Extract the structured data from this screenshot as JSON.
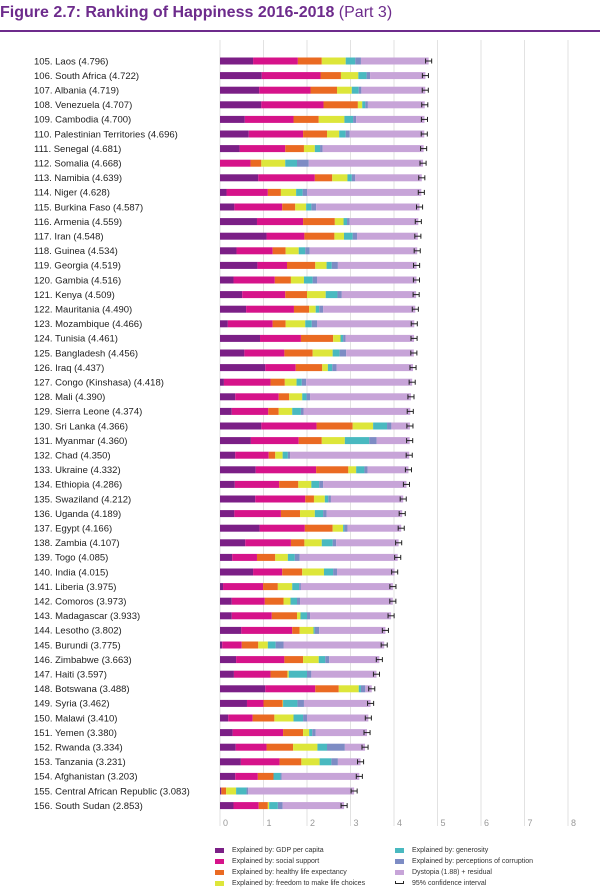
{
  "figure": {
    "title_bold": "Figure 2.7: Ranking of Happiness 2016-2018",
    "title_suffix": "(Part 3)"
  },
  "chart_data": {
    "type": "bar",
    "orientation": "horizontal",
    "stacked": true,
    "xlim": [
      0,
      8
    ],
    "xticks": [
      "0",
      "1",
      "2",
      "3",
      "4",
      "5",
      "6",
      "7",
      "8"
    ],
    "grid": true,
    "legend_position": "bottom",
    "colors": {
      "gdp": "#7b1f86",
      "social": "#d6138a",
      "health": "#ea6a22",
      "freedom": "#dde63a",
      "generosity": "#49b9c0",
      "corruption": "#7d8cc4",
      "dystopia": "#c7a4d8",
      "ci": "#222222"
    },
    "legend": [
      {
        "key": "gdp",
        "label": "Explained by: GDP per capita"
      },
      {
        "key": "social",
        "label": "Explained by: social support"
      },
      {
        "key": "health",
        "label": "Explained by: healthy life expectancy"
      },
      {
        "key": "freedom",
        "label": "Explained by: freedom to make life choices"
      },
      {
        "key": "generosity",
        "label": "Explained by: generosity"
      },
      {
        "key": "corruption",
        "label": "Explained by: perceptions of corruption"
      },
      {
        "key": "dystopia",
        "label": "Dystopia (1.88) + residual"
      },
      {
        "key": "ci",
        "label": "95% confidence interval"
      }
    ],
    "rows": [
      {
        "label": "105.  Laos (4.796)",
        "score": 4.796,
        "parts": [
          0.76,
          1.03,
          0.55,
          0.55,
          0.22,
          0.13
        ]
      },
      {
        "label": "106.  South Africa (4.722)",
        "score": 4.722,
        "parts": [
          0.96,
          1.35,
          0.47,
          0.4,
          0.19,
          0.08
        ]
      },
      {
        "label": "107.  Albania (4.719)",
        "score": 4.719,
        "parts": [
          0.9,
          1.18,
          0.61,
          0.34,
          0.16,
          0.06
        ]
      },
      {
        "label": "108.  Venezuela (4.707)",
        "score": 4.707,
        "parts": [
          0.95,
          1.43,
          0.79,
          0.1,
          0.07,
          0.06
        ]
      },
      {
        "label": "109.  Cambodia (4.700)",
        "score": 4.7,
        "parts": [
          0.57,
          1.12,
          0.58,
          0.59,
          0.2,
          0.07
        ]
      },
      {
        "label": "110.  Palestinian Territories (4.696)",
        "score": 4.696,
        "parts": [
          0.66,
          1.25,
          0.55,
          0.28,
          0.15,
          0.09
        ]
      },
      {
        "label": "111.  Senegal (4.681)",
        "score": 4.681,
        "parts": [
          0.45,
          1.05,
          0.43,
          0.25,
          0.12,
          0.06
        ]
      },
      {
        "label": "112.  Somalia (4.668)",
        "score": 4.668,
        "parts": [
          0.0,
          0.7,
          0.25,
          0.55,
          0.27,
          0.27
        ]
      },
      {
        "label": "113.  Namibia (4.639)",
        "score": 4.639,
        "parts": [
          0.88,
          1.3,
          0.4,
          0.35,
          0.1,
          0.08
        ]
      },
      {
        "label": "114.  Niger (4.628)",
        "score": 4.628,
        "parts": [
          0.15,
          0.95,
          0.3,
          0.35,
          0.15,
          0.1
        ]
      },
      {
        "label": "115.  Burkina Faso (4.587)",
        "score": 4.587,
        "parts": [
          0.33,
          1.1,
          0.3,
          0.25,
          0.12,
          0.11
        ]
      },
      {
        "label": "116.  Armenia (4.559)",
        "score": 4.559,
        "parts": [
          0.85,
          1.06,
          0.73,
          0.2,
          0.08,
          0.06
        ]
      },
      {
        "label": "117.  Iran (4.548)",
        "score": 4.548,
        "parts": [
          1.07,
          0.87,
          0.69,
          0.22,
          0.2,
          0.1
        ]
      },
      {
        "label": "118.  Guinea (4.534)",
        "score": 4.534,
        "parts": [
          0.38,
          0.83,
          0.3,
          0.3,
          0.15,
          0.1
        ]
      },
      {
        "label": "119.  Georgia (4.519)",
        "score": 4.519,
        "parts": [
          0.86,
          0.68,
          0.65,
          0.26,
          0.12,
          0.14
        ]
      },
      {
        "label": "120.  Gambia (4.516)",
        "score": 4.516,
        "parts": [
          0.31,
          0.95,
          0.37,
          0.3,
          0.2,
          0.1
        ]
      },
      {
        "label": "121.  Kenya (4.509)",
        "score": 4.509,
        "parts": [
          0.51,
          0.99,
          0.5,
          0.43,
          0.27,
          0.1
        ]
      },
      {
        "label": "122.  Mauritania (4.490)",
        "score": 4.49,
        "parts": [
          0.6,
          1.1,
          0.35,
          0.15,
          0.08,
          0.09
        ]
      },
      {
        "label": "123.  Mozambique (4.466)",
        "score": 4.466,
        "parts": [
          0.18,
          1.03,
          0.3,
          0.45,
          0.15,
          0.12
        ]
      },
      {
        "label": "124.  Tunisia (4.461)",
        "score": 4.461,
        "parts": [
          0.92,
          0.94,
          0.74,
          0.17,
          0.06,
          0.06
        ]
      },
      {
        "label": "125.  Bangladesh (4.456)",
        "score": 4.456,
        "parts": [
          0.56,
          0.92,
          0.65,
          0.46,
          0.16,
          0.15
        ]
      },
      {
        "label": "126.  Iraq (4.437)",
        "score": 4.437,
        "parts": [
          1.04,
          0.7,
          0.61,
          0.13,
          0.1,
          0.1
        ]
      },
      {
        "label": "127.  Congo (Kinshasa) (4.418)",
        "score": 4.418,
        "parts": [
          0.09,
          1.07,
          0.33,
          0.27,
          0.12,
          0.1
        ]
      },
      {
        "label": "128.  Mali (4.390)",
        "score": 4.39,
        "parts": [
          0.35,
          1.0,
          0.24,
          0.3,
          0.1,
          0.08
        ]
      },
      {
        "label": "129.  Sierra Leone (4.374)",
        "score": 4.374,
        "parts": [
          0.27,
          0.84,
          0.24,
          0.31,
          0.2,
          0.06
        ]
      },
      {
        "label": "130.  Sri Lanka (4.366)",
        "score": 4.366,
        "parts": [
          0.95,
          1.27,
          0.83,
          0.47,
          0.32,
          0.1
        ]
      },
      {
        "label": "131.  Myanmar (4.360)",
        "score": 4.36,
        "parts": [
          0.71,
          1.1,
          0.53,
          0.53,
          0.56,
          0.17
        ]
      },
      {
        "label": "132.  Chad (4.350)",
        "score": 4.35,
        "parts": [
          0.35,
          0.77,
          0.15,
          0.17,
          0.12,
          0.05
        ]
      },
      {
        "label": "133.  Ukraine (4.332)",
        "score": 4.332,
        "parts": [
          0.82,
          1.39,
          0.74,
          0.18,
          0.19,
          0.07
        ]
      },
      {
        "label": "134.  Ethiopia (4.286)",
        "score": 4.286,
        "parts": [
          0.34,
          1.02,
          0.44,
          0.3,
          0.18,
          0.09
        ]
      },
      {
        "label": "135.  Swaziland (4.212)",
        "score": 4.212,
        "parts": [
          0.81,
          1.15,
          0.2,
          0.25,
          0.08,
          0.06
        ]
      },
      {
        "label": "136.  Uganda (4.189)",
        "score": 4.189,
        "parts": [
          0.33,
          1.07,
          0.44,
          0.34,
          0.19,
          0.08
        ]
      },
      {
        "label": "137.  Egypt (4.166)",
        "score": 4.166,
        "parts": [
          0.91,
          1.04,
          0.64,
          0.24,
          0.03,
          0.07
        ]
      },
      {
        "label": "138.  Zambia (4.107)",
        "score": 4.107,
        "parts": [
          0.58,
          1.05,
          0.31,
          0.4,
          0.25,
          0.08
        ]
      },
      {
        "label": "139.  Togo (4.085)",
        "score": 4.085,
        "parts": [
          0.28,
          0.57,
          0.42,
          0.29,
          0.16,
          0.11
        ]
      },
      {
        "label": "140.  India (4.015)",
        "score": 4.015,
        "parts": [
          0.76,
          0.67,
          0.46,
          0.5,
          0.21,
          0.09
        ]
      },
      {
        "label": "141.  Liberia (3.975)",
        "score": 3.975,
        "parts": [
          0.07,
          0.92,
          0.34,
          0.33,
          0.16,
          0.04
        ]
      },
      {
        "label": "142.  Comoros (3.973)",
        "score": 3.973,
        "parts": [
          0.27,
          0.76,
          0.43,
          0.16,
          0.15,
          0.07
        ]
      },
      {
        "label": "143.  Madagascar (3.933)",
        "score": 3.933,
        "parts": [
          0.27,
          0.92,
          0.58,
          0.08,
          0.15,
          0.07
        ]
      },
      {
        "label": "144.  Lesotho (3.802)",
        "score": 3.802,
        "parts": [
          0.49,
          1.17,
          0.17,
          0.32,
          0.03,
          0.1
        ]
      },
      {
        "label": "145.  Burundi (3.775)",
        "score": 3.775,
        "parts": [
          0.05,
          0.45,
          0.38,
          0.22,
          0.18,
          0.18
        ]
      },
      {
        "label": "146.  Zimbabwe (3.663)",
        "score": 3.663,
        "parts": [
          0.37,
          1.11,
          0.43,
          0.36,
          0.15,
          0.09
        ]
      },
      {
        "label": "147.  Haiti (3.597)",
        "score": 3.597,
        "parts": [
          0.32,
          0.84,
          0.39,
          0.03,
          0.42,
          0.1
        ]
      },
      {
        "label": "148.  Botswana (3.488)",
        "score": 3.488,
        "parts": [
          1.04,
          1.15,
          0.54,
          0.46,
          0.05,
          0.1
        ]
      },
      {
        "label": "149.  Syria (3.462)",
        "score": 3.462,
        "parts": [
          0.62,
          0.38,
          0.44,
          0.01,
          0.33,
          0.15
        ]
      },
      {
        "label": "150.  Malawi (3.410)",
        "score": 3.41,
        "parts": [
          0.19,
          0.56,
          0.5,
          0.44,
          0.22,
          0.09
        ]
      },
      {
        "label": "151.  Yemen (3.380)",
        "score": 3.38,
        "parts": [
          0.29,
          1.16,
          0.46,
          0.14,
          0.07,
          0.08
        ]
      },
      {
        "label": "152.  Rwanda (3.334)",
        "score": 3.334,
        "parts": [
          0.36,
          0.71,
          0.61,
          0.56,
          0.22,
          0.41
        ]
      },
      {
        "label": "153.  Tanzania (3.231)",
        "score": 3.231,
        "parts": [
          0.48,
          0.89,
          0.5,
          0.42,
          0.27,
          0.15
        ]
      },
      {
        "label": "154.  Afghanistan (3.203)",
        "score": 3.203,
        "parts": [
          0.35,
          0.52,
          0.36,
          0.0,
          0.16,
          0.03
        ]
      },
      {
        "label": "155.  Central African Republic (3.083)",
        "score": 3.083,
        "parts": [
          0.03,
          0.0,
          0.11,
          0.23,
          0.24,
          0.04
        ]
      },
      {
        "label": "156.  South Sudan (2.853)",
        "score": 2.853,
        "parts": [
          0.31,
          0.58,
          0.21,
          0.03,
          0.2,
          0.11
        ]
      }
    ]
  }
}
